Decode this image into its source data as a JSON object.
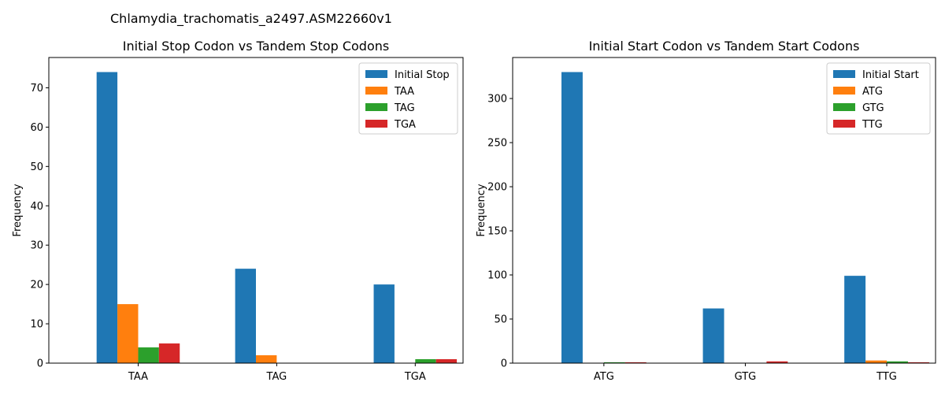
{
  "figure": {
    "suptitle": "Chlamydia_trachomatis_a2497.ASM22660v1"
  },
  "colors": [
    "#1f77b4",
    "#ff7f0e",
    "#2ca02c",
    "#d62728"
  ],
  "chart_data": [
    {
      "type": "bar",
      "title": "Initial Stop Codon vs Tandem Stop Codons",
      "xlabel": "",
      "ylabel": "Frequency",
      "categories": [
        "TAA",
        "TAG",
        "TGA"
      ],
      "ylim": [
        0,
        77.7
      ],
      "yticks": [
        0,
        10,
        20,
        30,
        40,
        50,
        60,
        70
      ],
      "legend_position": "top-right",
      "grid": false,
      "series": [
        {
          "name": "Initial Stop",
          "values": [
            74,
            24,
            20
          ]
        },
        {
          "name": "TAA",
          "values": [
            15,
            2,
            0
          ]
        },
        {
          "name": "TAG",
          "values": [
            4,
            0,
            1
          ]
        },
        {
          "name": "TGA",
          "values": [
            5,
            0,
            1
          ]
        }
      ]
    },
    {
      "type": "bar",
      "title": "Initial Start Codon vs Tandem Start Codons",
      "xlabel": "",
      "ylabel": "Frequency",
      "categories": [
        "ATG",
        "GTG",
        "TTG"
      ],
      "ylim": [
        0,
        346.5
      ],
      "yticks": [
        0,
        50,
        100,
        150,
        200,
        250,
        300
      ],
      "legend_position": "top-right",
      "grid": false,
      "series": [
        {
          "name": "Initial Start",
          "values": [
            330,
            62,
            99
          ]
        },
        {
          "name": "ATG",
          "values": [
            0,
            0,
            3
          ]
        },
        {
          "name": "GTG",
          "values": [
            1,
            0,
            2
          ]
        },
        {
          "name": "TTG",
          "values": [
            1,
            2,
            1
          ]
        }
      ]
    }
  ]
}
